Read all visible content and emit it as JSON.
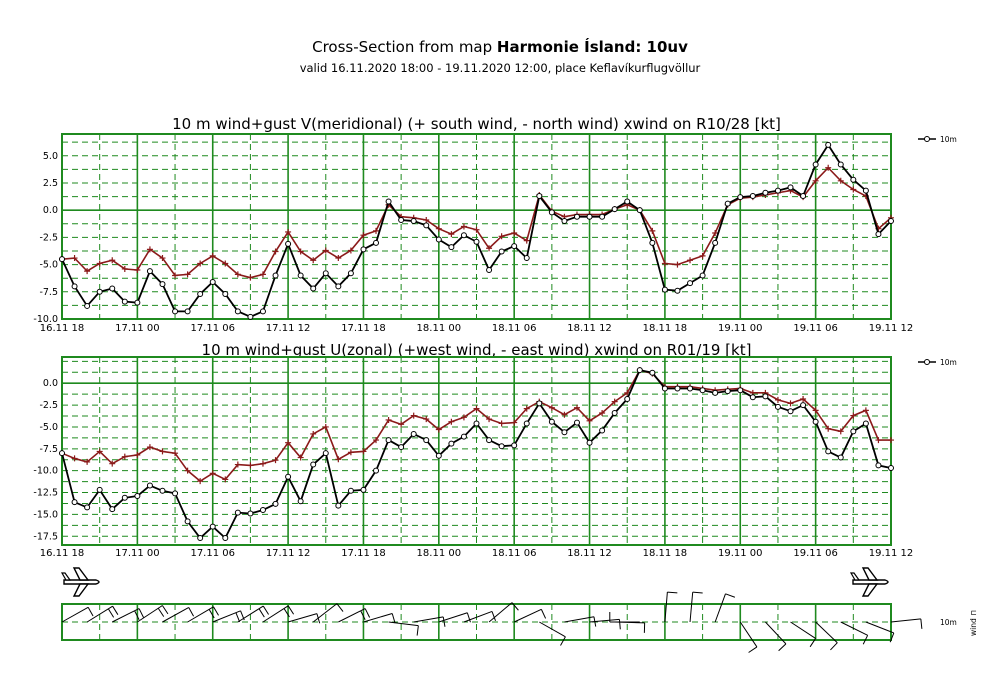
{
  "header": {
    "title_prefix": "Cross-Section from map ",
    "title_bold": "Harmonie Ísland: 10uv",
    "subtitle": "valid 16.11.2020 18:00 - 19.11.2020 12:00, place Keflavíkurflugvöllur"
  },
  "colors": {
    "frame": "#1f8a1f",
    "wind": "#000000",
    "gust": "#8b1a1a",
    "grid_dash": "#1f8a1f"
  },
  "chart_data": [
    {
      "type": "line",
      "title": "10 m wind+gust V(meridional) (+ south wind, - north wind) xwind on R10/28 [kt]",
      "x_tick_labels": [
        "16.11 18",
        "17.11 00",
        "17.11 06",
        "17.11 12",
        "17.11 18",
        "18.11 00",
        "18.11 06",
        "18.11 12",
        "18.11 18",
        "19.11 00",
        "19.11 06",
        "19.11 12"
      ],
      "ylim": [
        -10,
        7
      ],
      "y_ticks": [
        -10,
        -7.5,
        -5,
        -2.5,
        0,
        2.5,
        5
      ],
      "y_tick_labels": [
        "-10.0",
        "-7.5",
        "-5.0",
        "-2.5",
        "0.0",
        "2.5",
        "5.0"
      ],
      "legend": "10m",
      "series": [
        {
          "name": "wind",
          "values": [
            -4.5,
            -7,
            -8.8,
            -7.5,
            -7.2,
            -8.4,
            -8.5,
            -5.6,
            -6.8,
            -9.3,
            -9.3,
            -7.7,
            -6.6,
            -7.7,
            -9.3,
            -9.8,
            -9.3,
            -6,
            -3.1,
            -6,
            -7.2,
            -5.8,
            -7,
            -5.8,
            -3.6,
            -3,
            0.8,
            -0.9,
            -1,
            -1.4,
            -2.7,
            -3.4,
            -2.3,
            -2.9,
            -5.5,
            -3.8,
            -3.3,
            -4.4,
            1.3,
            -0.2,
            -1,
            -0.6,
            -0.6,
            -0.6,
            0.1,
            0.8,
            0,
            -3,
            -7.3,
            -7.4,
            -6.7,
            -6,
            -3,
            0.6,
            1.2,
            1.3,
            1.6,
            1.8,
            2.1,
            1.3,
            4.2,
            6,
            4.2,
            2.8,
            1.8,
            -2.2,
            -1
          ]
        },
        {
          "name": "gust",
          "values": [
            -4.5,
            -4.4,
            -5.6,
            -4.9,
            -4.6,
            -5.4,
            -5.5,
            -3.6,
            -4.4,
            -6,
            -5.9,
            -4.9,
            -4.2,
            -4.9,
            -5.9,
            -6.2,
            -5.9,
            -3.8,
            -2,
            -3.8,
            -4.6,
            -3.7,
            -4.4,
            -3.7,
            -2.3,
            -1.9,
            0.5,
            -0.6,
            -0.7,
            -0.9,
            -1.7,
            -2.2,
            -1.5,
            -1.8,
            -3.5,
            -2.4,
            -2.1,
            -2.8,
            1.4,
            -0.1,
            -0.6,
            -0.4,
            -0.4,
            -0.4,
            0.1,
            0.5,
            0,
            -1.9,
            -4.9,
            -5,
            -4.6,
            -4.2,
            -2.1,
            0.5,
            1.1,
            1.2,
            1.4,
            1.6,
            1.8,
            1.2,
            2.7,
            3.9,
            2.7,
            1.9,
            1.3,
            -1.7,
            -0.7
          ]
        }
      ]
    },
    {
      "type": "line",
      "title": "10 m wind+gust U(zonal) (+west wind, - east wind) xwind on R01/19 [kt]",
      "x_tick_labels": [
        "16.11 18",
        "17.11 00",
        "17.11 06",
        "17.11 12",
        "17.11 18",
        "18.11 00",
        "18.11 06",
        "18.11 12",
        "18.11 18",
        "19.11 00",
        "19.11 06",
        "19.11 12"
      ],
      "ylim": [
        -18.5,
        3
      ],
      "y_ticks": [
        -17.5,
        -15,
        -12.5,
        -10,
        -7.5,
        -5,
        -2.5,
        0
      ],
      "y_tick_labels": [
        "-17.5",
        "-15.0",
        "-12.5",
        "-10.0",
        "-7.5",
        "-5.0",
        "-2.5",
        "0.0"
      ],
      "legend": "10m",
      "series": [
        {
          "name": "wind",
          "values": [
            -8,
            -13.6,
            -14.2,
            -12.2,
            -14.4,
            -13.1,
            -12.9,
            -11.7,
            -12.3,
            -12.6,
            -15.8,
            -17.7,
            -16.4,
            -17.7,
            -14.8,
            -14.9,
            -14.5,
            -13.8,
            -10.7,
            -13.5,
            -9.3,
            -8,
            -14,
            -12.3,
            -12.2,
            -10,
            -6.5,
            -7.3,
            -5.8,
            -6.5,
            -8.3,
            -6.9,
            -6.1,
            -4.6,
            -6.5,
            -7.2,
            -7.1,
            -4.6,
            -2.3,
            -4.4,
            -5.6,
            -4.5,
            -6.8,
            -5.4,
            -3.4,
            -1.8,
            1.5,
            1.2,
            -0.6,
            -0.6,
            -0.6,
            -0.8,
            -1.1,
            -0.9,
            -0.8,
            -1.6,
            -1.5,
            -2.7,
            -3.2,
            -2.5,
            -4.4,
            -7.8,
            -8.5,
            -5.5,
            -4.6,
            -9.4,
            -9.7
          ]
        },
        {
          "name": "gust",
          "values": [
            -8,
            -8.6,
            -9,
            -7.8,
            -9.2,
            -8.4,
            -8.2,
            -7.3,
            -7.8,
            -8,
            -10,
            -11.2,
            -10.3,
            -11,
            -9.3,
            -9.4,
            -9.2,
            -8.8,
            -6.8,
            -8.5,
            -5.8,
            -5,
            -8.7,
            -7.9,
            -7.8,
            -6.5,
            -4.2,
            -4.7,
            -3.7,
            -4.1,
            -5.3,
            -4.4,
            -3.9,
            -2.9,
            -4.1,
            -4.6,
            -4.5,
            -2.9,
            -2.1,
            -2.8,
            -3.6,
            -2.8,
            -4.3,
            -3.4,
            -2.1,
            -1.1,
            1.5,
            1.1,
            -0.4,
            -0.4,
            -0.4,
            -0.6,
            -0.8,
            -0.7,
            -0.6,
            -1.1,
            -1.1,
            -1.9,
            -2.3,
            -1.8,
            -3.1,
            -5.2,
            -5.5,
            -3.7,
            -3.1,
            -6.5,
            -6.5
          ]
        }
      ]
    }
  ],
  "barb_panel": {
    "legend_line1": "10m",
    "legend_line2": "wind ⊓"
  }
}
